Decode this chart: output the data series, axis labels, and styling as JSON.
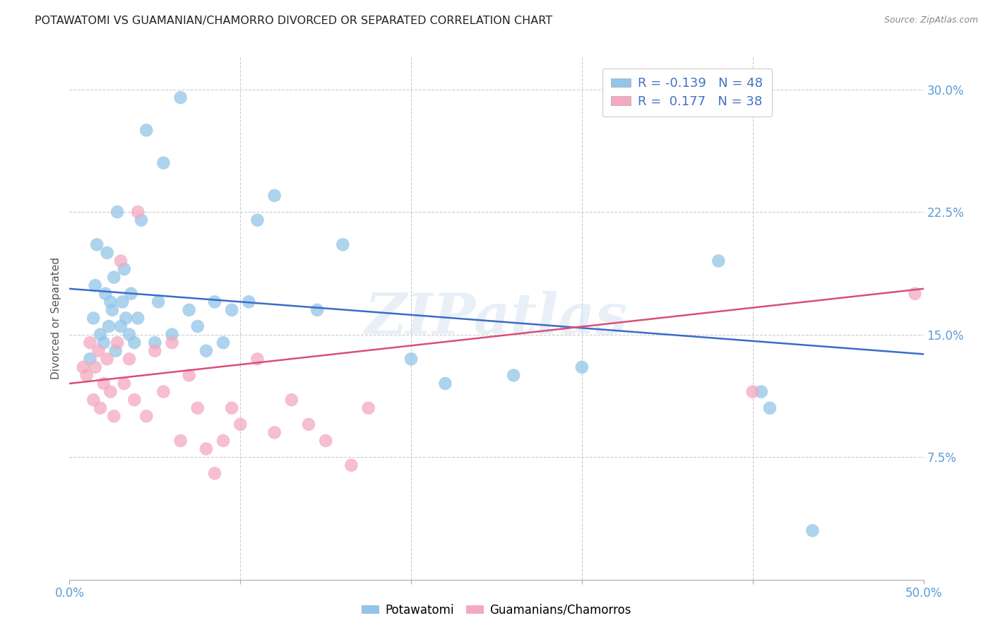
{
  "title": "POTAWATOMI VS GUAMANIAN/CHAMORRO DIVORCED OR SEPARATED CORRELATION CHART",
  "source": "Source: ZipAtlas.com",
  "ylabel": "Divorced or Separated",
  "xlim": [
    0,
    50
  ],
  "ylim": [
    0,
    32
  ],
  "xticks": [
    0,
    10,
    20,
    30,
    40,
    50
  ],
  "xticklabels": [
    "0.0%",
    "",
    "",
    "",
    "",
    "50.0%"
  ],
  "yticks": [
    7.5,
    15.0,
    22.5,
    30.0
  ],
  "yticklabels": [
    "7.5%",
    "15.0%",
    "22.5%",
    "30.0%"
  ],
  "watermark": "ZIPatlas",
  "legend_labels": [
    "Potawatomi",
    "Guamanians/Chamorros"
  ],
  "r_potawatomi": -0.139,
  "n_potawatomi": 48,
  "r_guamanian": 0.177,
  "n_guamanian": 38,
  "blue_color": "#92C5E8",
  "pink_color": "#F4A9BF",
  "blue_line_color": "#3A6CC8",
  "pink_line_color": "#D94F7A",
  "grid_color": "#CCCCCC",
  "background_color": "#FFFFFF",
  "tick_color": "#5B9BD5",
  "title_color": "#222222",
  "source_color": "#888888",
  "ylabel_color": "#555555",
  "blue_y0": 17.8,
  "blue_y50": 13.8,
  "pink_y0": 12.0,
  "pink_y50": 17.8,
  "potawatomi_x": [
    1.2,
    1.4,
    1.5,
    1.6,
    1.8,
    2.0,
    2.1,
    2.2,
    2.3,
    2.4,
    2.5,
    2.6,
    2.7,
    2.8,
    3.0,
    3.1,
    3.2,
    3.3,
    3.5,
    3.6,
    3.8,
    4.0,
    4.2,
    4.5,
    5.0,
    5.2,
    5.5,
    6.0,
    6.5,
    7.0,
    7.5,
    8.0,
    8.5,
    9.0,
    9.5,
    10.5,
    11.0,
    12.0,
    14.5,
    16.0,
    20.0,
    22.0,
    26.0,
    30.0,
    38.0,
    40.5,
    41.0,
    43.5
  ],
  "potawatomi_y": [
    13.5,
    16.0,
    18.0,
    20.5,
    15.0,
    14.5,
    17.5,
    20.0,
    15.5,
    17.0,
    16.5,
    18.5,
    14.0,
    22.5,
    15.5,
    17.0,
    19.0,
    16.0,
    15.0,
    17.5,
    14.5,
    16.0,
    22.0,
    27.5,
    14.5,
    17.0,
    25.5,
    15.0,
    29.5,
    16.5,
    15.5,
    14.0,
    17.0,
    14.5,
    16.5,
    17.0,
    22.0,
    23.5,
    16.5,
    20.5,
    13.5,
    12.0,
    12.5,
    13.0,
    19.5,
    11.5,
    10.5,
    3.0
  ],
  "guamanian_x": [
    0.8,
    1.0,
    1.2,
    1.4,
    1.5,
    1.7,
    1.8,
    2.0,
    2.2,
    2.4,
    2.6,
    2.8,
    3.0,
    3.2,
    3.5,
    3.8,
    4.0,
    4.5,
    5.0,
    5.5,
    6.0,
    6.5,
    7.0,
    7.5,
    8.0,
    8.5,
    9.0,
    9.5,
    10.0,
    11.0,
    12.0,
    13.0,
    14.0,
    15.0,
    16.5,
    17.5,
    40.0,
    49.5
  ],
  "guamanian_y": [
    13.0,
    12.5,
    14.5,
    11.0,
    13.0,
    14.0,
    10.5,
    12.0,
    13.5,
    11.5,
    10.0,
    14.5,
    19.5,
    12.0,
    13.5,
    11.0,
    22.5,
    10.0,
    14.0,
    11.5,
    14.5,
    8.5,
    12.5,
    10.5,
    8.0,
    6.5,
    8.5,
    10.5,
    9.5,
    13.5,
    9.0,
    11.0,
    9.5,
    8.5,
    7.0,
    10.5,
    11.5,
    17.5
  ]
}
